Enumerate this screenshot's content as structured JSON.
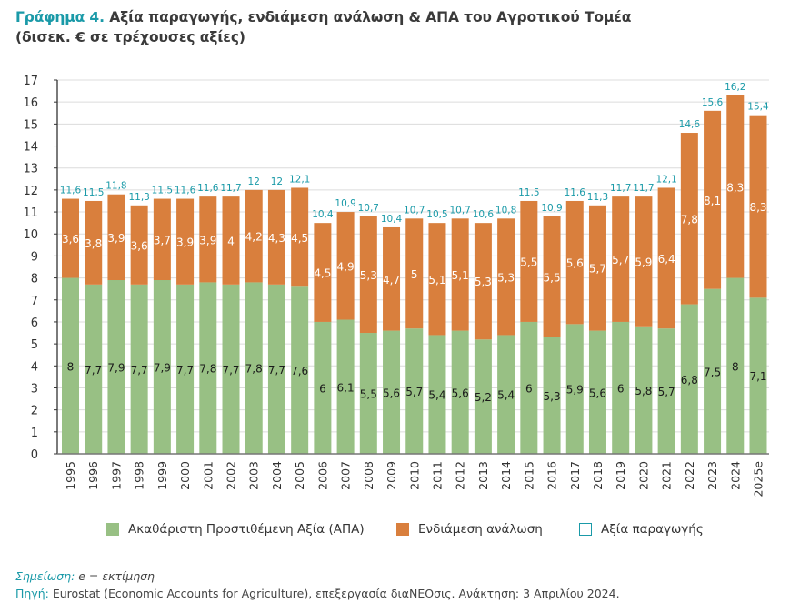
{
  "header": {
    "figure_label": "Γράφημα 4.",
    "title_line1": "Αξία παραγωγής, ενδιάμεση ανάλωση & ΑΠΑ του Αγροτικού Τομέα",
    "title_line2": "(δισεκ. € σε τρέχουσες αξίες)"
  },
  "chart_data": {
    "type": "bar",
    "stacked": true,
    "title": "Αξία παραγωγής, ενδιάμεση ανάλωση & ΑΠΑ του Αγροτικού Τομέα",
    "subtitle": "(δισεκ. € σε τρέχουσες αξίες)",
    "xlabel": "",
    "ylabel": "",
    "ylim": [
      0,
      17
    ],
    "yticks": [
      0,
      1,
      2,
      3,
      4,
      5,
      6,
      7,
      8,
      9,
      10,
      11,
      12,
      13,
      14,
      15,
      16,
      17
    ],
    "grid": true,
    "legend_position": "bottom",
    "categories": [
      "1995",
      "1996",
      "1997",
      "1998",
      "1999",
      "2000",
      "2001",
      "2002",
      "2003",
      "2004",
      "2005",
      "2006",
      "2007",
      "2008",
      "2009",
      "2010",
      "2011",
      "2012",
      "2013",
      "2014",
      "2015",
      "2016",
      "2017",
      "2018",
      "2019",
      "2020",
      "2021",
      "2022",
      "2023",
      "2024",
      "2025e"
    ],
    "series": [
      {
        "name": "Ακαθάριστη Προστιθέμενη Αξία (ΑΠΑ)",
        "color": "#98c084",
        "label_color": "#1a1a1a",
        "values": [
          8,
          7.7,
          7.9,
          7.7,
          7.9,
          7.7,
          7.8,
          7.7,
          7.8,
          7.7,
          7.6,
          6,
          6.1,
          5.5,
          5.6,
          5.7,
          5.4,
          5.6,
          5.2,
          5.4,
          6,
          5.3,
          5.9,
          5.6,
          6,
          5.8,
          5.7,
          6.8,
          7.5,
          8,
          7.1
        ]
      },
      {
        "name": "Ενδιάμεση ανάλωση",
        "color": "#d97f3d",
        "label_color": "#ffffff",
        "values": [
          3.6,
          3.8,
          3.9,
          3.6,
          3.7,
          3.9,
          3.9,
          4,
          4.2,
          4.3,
          4.5,
          4.5,
          4.9,
          5.3,
          4.7,
          5,
          5.1,
          5.1,
          5.3,
          5.3,
          5.5,
          5.5,
          5.6,
          5.7,
          5.7,
          5.9,
          6.4,
          7.8,
          8.1,
          8.3,
          8.3
        ]
      },
      {
        "name": "Αξία παραγωγής",
        "color": "#1a9aa8",
        "style": "total-label",
        "values": [
          11.6,
          11.5,
          11.8,
          11.3,
          11.5,
          11.6,
          11.6,
          11.7,
          12,
          12,
          12.1,
          10.4,
          10.9,
          10.7,
          10.4,
          10.7,
          10.5,
          10.7,
          10.6,
          10.8,
          11.5,
          10.9,
          11.6,
          11.3,
          11.7,
          11.7,
          12.1,
          14.6,
          15.6,
          16.2,
          15.4
        ]
      }
    ]
  },
  "legend": {
    "items": [
      {
        "label": "Ακαθάριστη Προστιθέμενη Αξία (ΑΠΑ)",
        "color": "#98c084"
      },
      {
        "label": "Ενδιάμεση ανάλωση",
        "color": "#d97f3d"
      },
      {
        "label": "Αξία παραγωγής",
        "color": "#1a9aa8"
      }
    ]
  },
  "footer": {
    "note_label": "Σημείωση:",
    "note_text": " e = εκτίμηση",
    "source_label": "Πηγή:",
    "source_text": " Eurostat (Economic Accounts for Agriculture), επεξεργασία διαΝΕΟσις. Ανάκτηση: 3 Απριλίου 2024."
  }
}
